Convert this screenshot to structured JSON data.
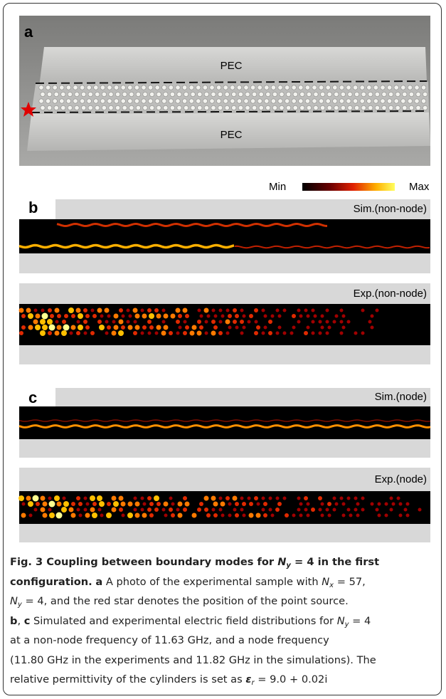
{
  "panels": {
    "a": {
      "label": "a",
      "top_plate": "PEC",
      "bottom_plate": "PEC"
    },
    "colorbar": {
      "min": "Min",
      "max": "Max"
    },
    "b": {
      "label": "b",
      "sim_title": "Sim.(non-node)",
      "exp_title": "Exp.(non-node)"
    },
    "c": {
      "label": "c",
      "sim_title": "Sim.(node)",
      "exp_title": "Exp.(node)"
    }
  },
  "caption": {
    "lines": [
      [
        "Fig. 3 Coupling between boundary modes for",
        "N",
        "y",
        "= 4 in the first"
      ],
      [
        "configuration.",
        "a",
        "A photo of the experimental sample with",
        "N",
        "x",
        "= 57,"
      ],
      [
        "N",
        "y",
        "= 4, and the red star denotes the position of the point source."
      ],
      [
        "b",
        ",",
        "c",
        "Simulated and experimental electric field distributions for",
        "N",
        "y",
        "= 4"
      ],
      [
        "at a non-node frequency of 11.63 GHz, and a node frequency"
      ],
      [
        "(11.80 GHz in the experiments and 11.82 GHz in the simulations). The"
      ],
      [
        "relative permittivity of the cylinders is set as",
        "ε",
        "r",
        "= 9.0 + 0.02i"
      ]
    ]
  }
}
